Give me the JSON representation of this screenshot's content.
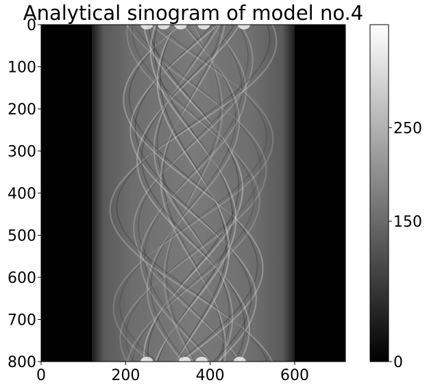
{
  "chart_data": {
    "type": "heatmap",
    "title": "Analytical sinogram of model no.4",
    "xlabel": "",
    "ylabel": "",
    "xlim": [
      0,
      720
    ],
    "ylim": [
      800,
      0
    ],
    "x_ticks": [
      "0",
      "200",
      "400",
      "600"
    ],
    "x_tick_values": [
      0,
      200,
      400,
      600
    ],
    "y_ticks": [
      "0",
      "100",
      "200",
      "300",
      "400",
      "500",
      "600",
      "700",
      "800"
    ],
    "y_tick_values": [
      0,
      100,
      200,
      300,
      400,
      500,
      600,
      700,
      800
    ],
    "colormap": "gray",
    "colorbar": {
      "range": [
        0,
        360
      ],
      "ticks": [
        "0",
        "150",
        "250"
      ],
      "tick_values": [
        0,
        150,
        250
      ]
    },
    "object_support_x": [
      120,
      600
    ],
    "grid": false
  }
}
